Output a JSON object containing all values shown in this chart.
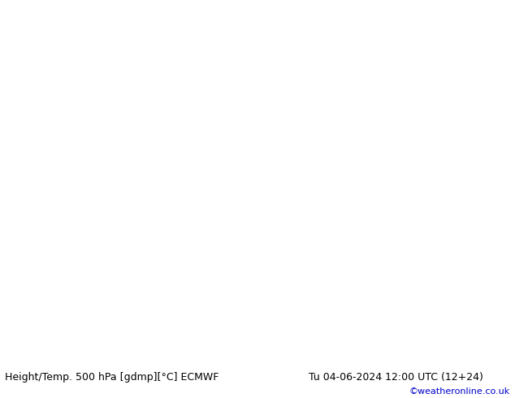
{
  "title_left": "Height/Temp. 500 hPa [gdmp][°C] ECMWF",
  "title_right": "Tu 04-06-2024 12:00 UTC (12+24)",
  "credit": "©weatheronline.co.uk",
  "credit_color": "#0000cc",
  "footer_text_color": "#000000",
  "title_fontsize": 9.0,
  "credit_fontsize": 8.0,
  "fig_width": 6.34,
  "fig_height": 4.9,
  "dpi": 100,
  "map_extent": [
    -30,
    35,
    30,
    72
  ],
  "ocean_color": "#c8c8c8",
  "land_green_color": "#c8e8b0",
  "land_gray_color": "#c8c8c8",
  "coast_color": "#888888",
  "border_color": "#999999",
  "height_contour_color": "#000000",
  "cyan_contour_color": "#00cccc",
  "orange_contour_color": "#ff8c00",
  "red_contour_color": "#dd0000",
  "green_label_color": "#008800"
}
